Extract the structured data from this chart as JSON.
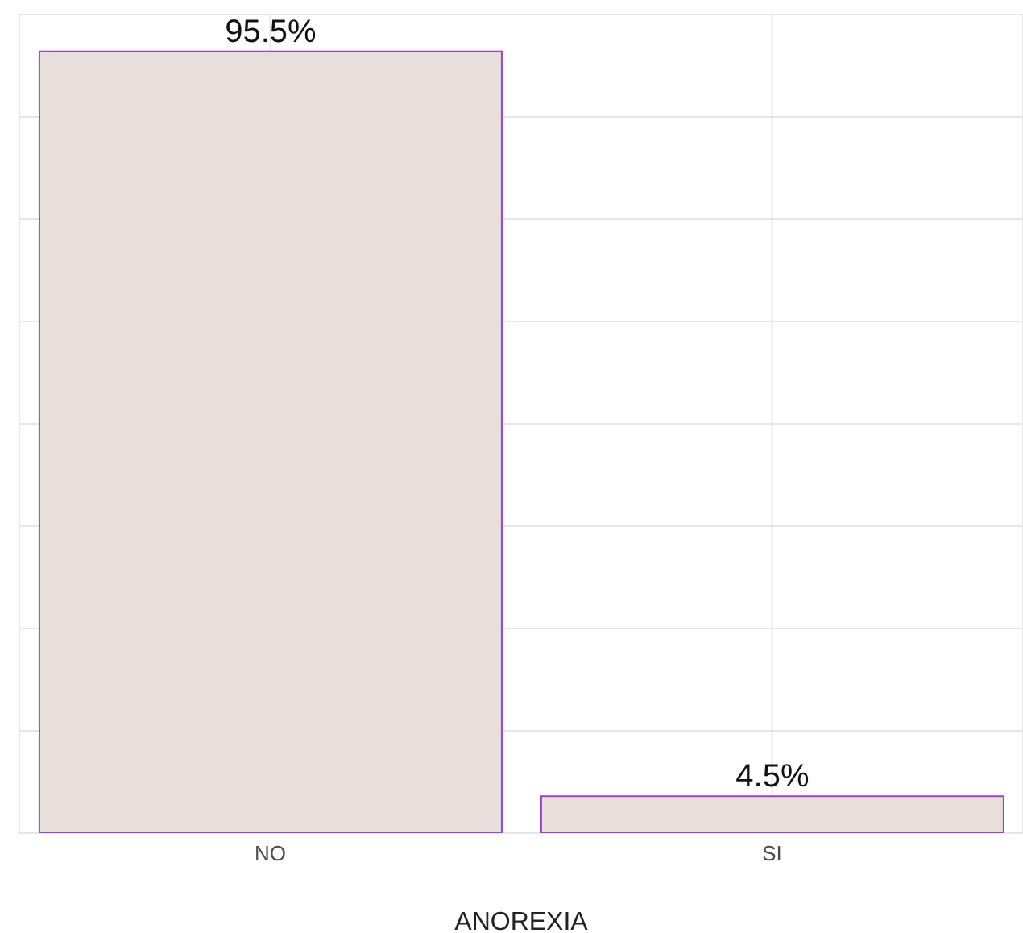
{
  "chart_data": {
    "type": "bar",
    "xlabel": "ANOREXIA",
    "categories": [
      "NO",
      "SI"
    ],
    "values": [
      95.5,
      4.5
    ],
    "color": "#e8dfdb",
    "value_labels": [
      "95.5%",
      "4.5%"
    ],
    "ylim": [
      0,
      100
    ],
    "yticks": [
      {
        "value": 0,
        "label": null
      },
      {
        "value": 12.5,
        "label": null
      },
      {
        "value": 25,
        "label": null
      },
      {
        "value": 37.5,
        "label": null
      },
      {
        "value": 50,
        "label": null
      },
      {
        "value": 62.5,
        "label": null
      },
      {
        "value": 75,
        "label": null
      },
      {
        "value": 87.5,
        "label": null
      },
      {
        "value": 100,
        "label": null
      }
    ],
    "tick_labels": "x",
    "grid": true,
    "legend": false
  }
}
